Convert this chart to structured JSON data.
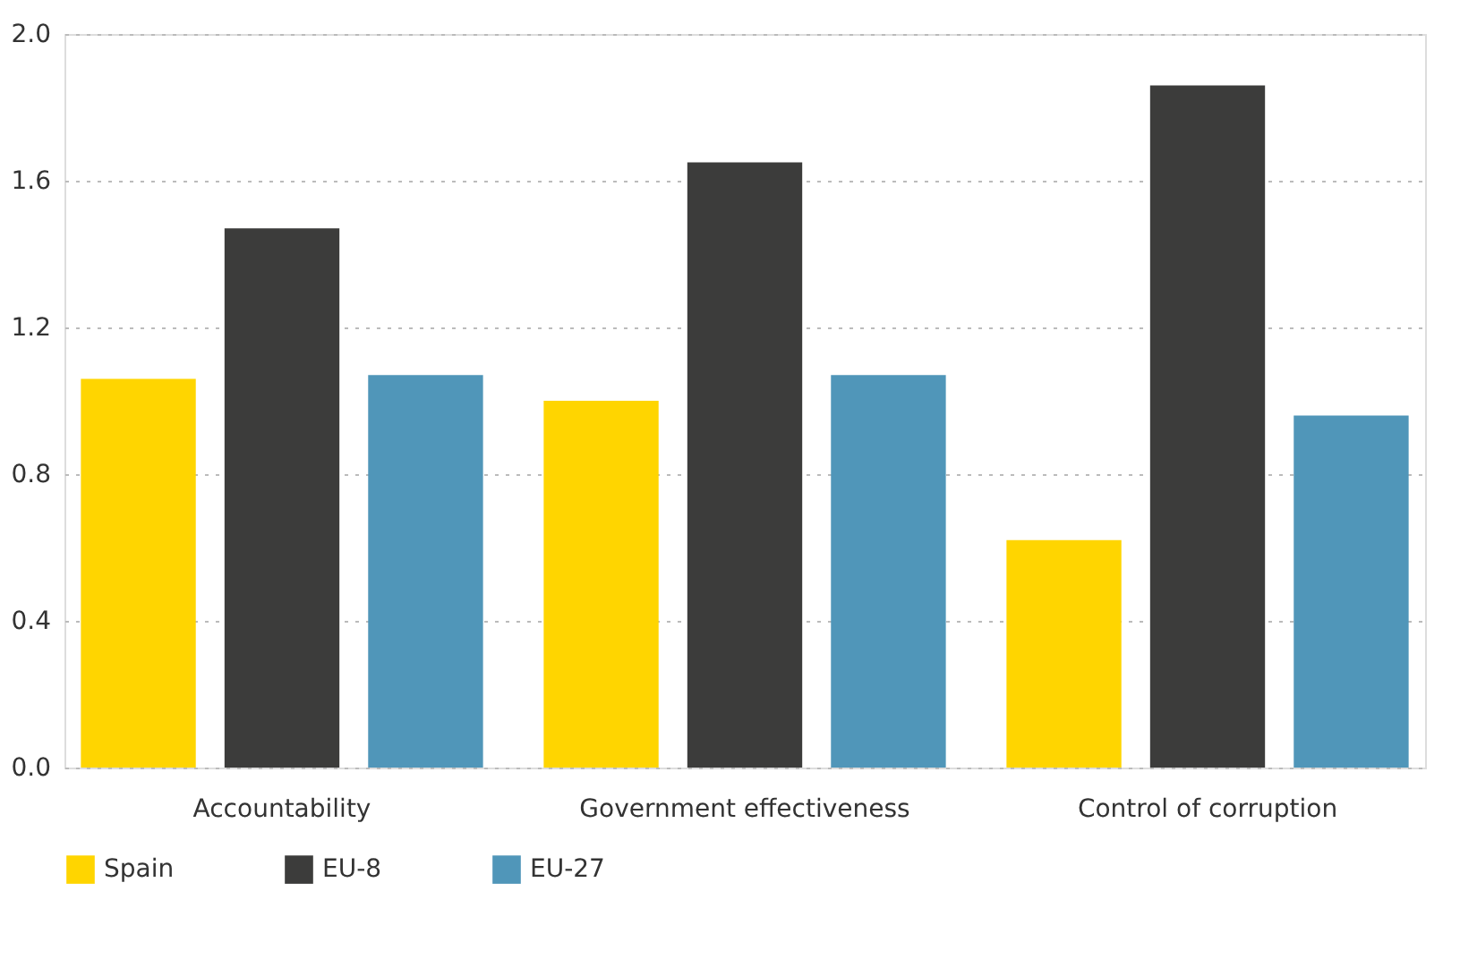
{
  "chart_data": {
    "type": "bar",
    "categories": [
      "Accountability",
      "Government effectiveness",
      "Control of corruption"
    ],
    "series": [
      {
        "name": "Spain",
        "color": "#ffd500",
        "values": [
          1.06,
          1.0,
          0.62
        ]
      },
      {
        "name": "EU-8",
        "color": "#3c3c3b",
        "values": [
          1.47,
          1.65,
          1.86
        ]
      },
      {
        "name": "EU-27",
        "color": "#5096b9",
        "values": [
          1.07,
          1.07,
          0.96
        ]
      }
    ],
    "ylim": [
      0,
      2.0
    ],
    "yticks": [
      {
        "value": 0,
        "label": "0.0"
      },
      {
        "value": 0.4,
        "label": "0.4"
      },
      {
        "value": 0.8,
        "label": "0.8"
      },
      {
        "value": 1.2,
        "label": "1.2"
      },
      {
        "value": 1.6,
        "label": "1.6"
      },
      {
        "value": 2.0,
        "label": "2.0"
      }
    ],
    "grid": "y",
    "legend": "bottom"
  }
}
